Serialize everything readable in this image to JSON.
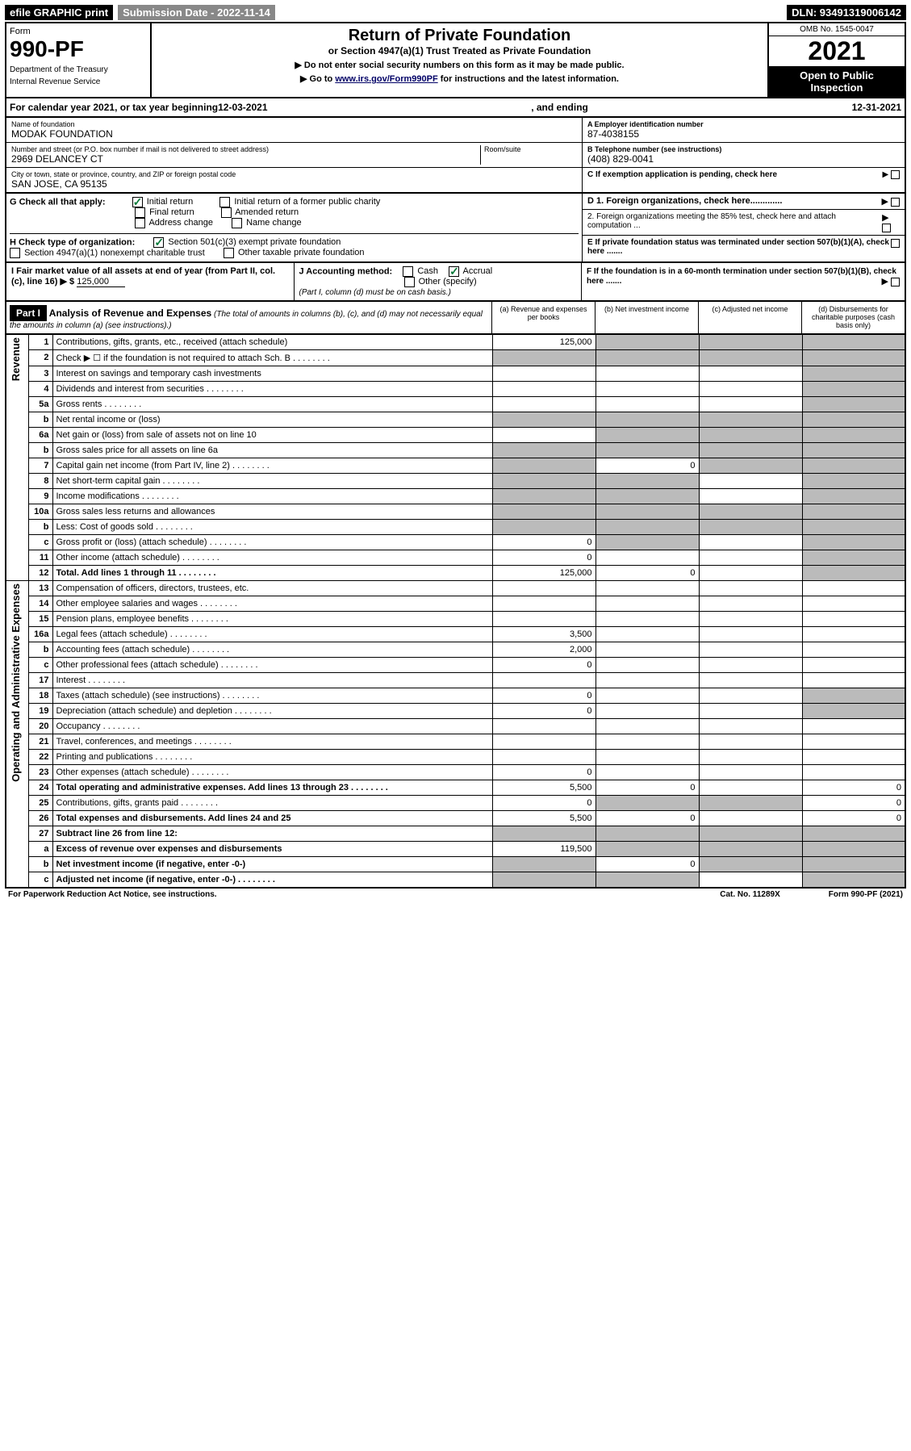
{
  "topbar": {
    "efile": "efile GRAPHIC print",
    "submission": "Submission Date - 2022-11-14",
    "dln": "DLN: 93491319006142"
  },
  "header": {
    "form": "Form",
    "form_no": "990-PF",
    "dept": "Department of the Treasury",
    "irs": "Internal Revenue Service",
    "title": "Return of Private Foundation",
    "subtitle": "or Section 4947(a)(1) Trust Treated as Private Foundation",
    "note1": "▶ Do not enter social security numbers on this form as it may be made public.",
    "note2_pre": "▶ Go to ",
    "note2_link": "www.irs.gov/Form990PF",
    "note2_post": " for instructions and the latest information.",
    "omb": "OMB No. 1545-0047",
    "year": "2021",
    "open": "Open to Public Inspection"
  },
  "calyear": {
    "pre": "For calendar year 2021, or tax year beginning ",
    "begin": "12-03-2021",
    "mid": " , and ending ",
    "end": "12-31-2021"
  },
  "info": {
    "name_lbl": "Name of foundation",
    "name": "MODAK FOUNDATION",
    "addr_lbl": "Number and street (or P.O. box number if mail is not delivered to street address)",
    "addr": "2969 DELANCEY CT",
    "room_lbl": "Room/suite",
    "city_lbl": "City or town, state or province, country, and ZIP or foreign postal code",
    "city": "SAN JOSE, CA  95135",
    "a_lbl": "A Employer identification number",
    "a_val": "87-4038155",
    "b_lbl": "B Telephone number (see instructions)",
    "b_val": "(408) 829-0041",
    "c_lbl": "C If exemption application is pending, check here",
    "d1": "D 1. Foreign organizations, check here.............",
    "d2": "2. Foreign organizations meeting the 85% test, check here and attach computation ...",
    "e": "E  If private foundation status was terminated under section 507(b)(1)(A), check here .......",
    "f": "F  If the foundation is in a 60-month termination under section 507(b)(1)(B), check here ......."
  },
  "g": {
    "lbl": "G Check all that apply:",
    "initial": "Initial return",
    "initial_former": "Initial return of a former public charity",
    "final": "Final return",
    "amended": "Amended return",
    "addr_change": "Address change",
    "name_change": "Name change"
  },
  "h": {
    "lbl": "H Check type of organization:",
    "s501": "Section 501(c)(3) exempt private foundation",
    "s4947": "Section 4947(a)(1) nonexempt charitable trust",
    "other_tax": "Other taxable private foundation"
  },
  "i": {
    "lbl": "I Fair market value of all assets at end of year (from Part II, col. (c), line 16) ▶ $ ",
    "val": "125,000"
  },
  "j": {
    "lbl": "J Accounting method:",
    "cash": "Cash",
    "accrual": "Accrual",
    "other": "Other (specify)",
    "note": "(Part I, column (d) must be on cash basis.)"
  },
  "part1": {
    "hdr": "Part I",
    "title": "Analysis of Revenue and Expenses",
    "note": " (The total of amounts in columns (b), (c), and (d) may not necessarily equal the amounts in column (a) (see instructions).)",
    "col_a": "(a) Revenue and expenses per books",
    "col_b": "(b) Net investment income",
    "col_c": "(c) Adjusted net income",
    "col_d": "(d) Disbursements for charitable purposes (cash basis only)"
  },
  "side": {
    "rev": "Revenue",
    "exp": "Operating and Administrative Expenses"
  },
  "rows": [
    {
      "n": "1",
      "lbl": "Contributions, gifts, grants, etc., received (attach schedule)",
      "a": "125,000",
      "shade_b": true,
      "shade_c": true,
      "shade_d": true
    },
    {
      "n": "2",
      "lbl": "Check ▶ ☐ if the foundation is not required to attach Sch. B",
      "dots": true,
      "shade_a": true,
      "shade_b": true,
      "shade_c": true,
      "shade_d": true
    },
    {
      "n": "3",
      "lbl": "Interest on savings and temporary cash investments",
      "shade_d": true
    },
    {
      "n": "4",
      "lbl": "Dividends and interest from securities",
      "dots": true,
      "shade_d": true
    },
    {
      "n": "5a",
      "lbl": "Gross rents",
      "dots": true,
      "shade_d": true
    },
    {
      "n": "b",
      "lbl": "Net rental income or (loss)",
      "shade_a": true,
      "shade_b": true,
      "shade_c": true,
      "shade_d": true
    },
    {
      "n": "6a",
      "lbl": "Net gain or (loss) from sale of assets not on line 10",
      "shade_b": true,
      "shade_c": true,
      "shade_d": true
    },
    {
      "n": "b",
      "lbl": "Gross sales price for all assets on line 6a",
      "shade_a": true,
      "shade_b": true,
      "shade_c": true,
      "shade_d": true
    },
    {
      "n": "7",
      "lbl": "Capital gain net income (from Part IV, line 2)",
      "dots": true,
      "shade_a": true,
      "b": "0",
      "shade_c": true,
      "shade_d": true
    },
    {
      "n": "8",
      "lbl": "Net short-term capital gain",
      "dots": true,
      "shade_a": true,
      "shade_b": true,
      "shade_d": true
    },
    {
      "n": "9",
      "lbl": "Income modifications",
      "dots": true,
      "shade_a": true,
      "shade_b": true,
      "shade_d": true
    },
    {
      "n": "10a",
      "lbl": "Gross sales less returns and allowances",
      "shade_a": true,
      "shade_b": true,
      "shade_c": true,
      "shade_d": true
    },
    {
      "n": "b",
      "lbl": "Less: Cost of goods sold",
      "dots": true,
      "shade_a": true,
      "shade_b": true,
      "shade_c": true,
      "shade_d": true
    },
    {
      "n": "c",
      "lbl": "Gross profit or (loss) (attach schedule)",
      "dots": true,
      "a": "0",
      "shade_b": true,
      "shade_d": true
    },
    {
      "n": "11",
      "lbl": "Other income (attach schedule)",
      "dots": true,
      "a": "0",
      "shade_d": true
    },
    {
      "n": "12",
      "lbl": "Total. Add lines 1 through 11",
      "dots": true,
      "bold": true,
      "a": "125,000",
      "b": "0",
      "shade_d": true
    },
    {
      "n": "13",
      "lbl": "Compensation of officers, directors, trustees, etc."
    },
    {
      "n": "14",
      "lbl": "Other employee salaries and wages",
      "dots": true
    },
    {
      "n": "15",
      "lbl": "Pension plans, employee benefits",
      "dots": true
    },
    {
      "n": "16a",
      "lbl": "Legal fees (attach schedule)",
      "dots": true,
      "a": "3,500"
    },
    {
      "n": "b",
      "lbl": "Accounting fees (attach schedule)",
      "dots": true,
      "a": "2,000"
    },
    {
      "n": "c",
      "lbl": "Other professional fees (attach schedule)",
      "dots": true,
      "a": "0"
    },
    {
      "n": "17",
      "lbl": "Interest",
      "dots": true
    },
    {
      "n": "18",
      "lbl": "Taxes (attach schedule) (see instructions)",
      "dots": true,
      "a": "0",
      "shade_d": true
    },
    {
      "n": "19",
      "lbl": "Depreciation (attach schedule) and depletion",
      "dots": true,
      "a": "0",
      "shade_d": true
    },
    {
      "n": "20",
      "lbl": "Occupancy",
      "dots": true
    },
    {
      "n": "21",
      "lbl": "Travel, conferences, and meetings",
      "dots": true
    },
    {
      "n": "22",
      "lbl": "Printing and publications",
      "dots": true
    },
    {
      "n": "23",
      "lbl": "Other expenses (attach schedule)",
      "dots": true,
      "a": "0"
    },
    {
      "n": "24",
      "lbl": "Total operating and administrative expenses. Add lines 13 through 23",
      "dots": true,
      "bold": true,
      "a": "5,500",
      "b": "0",
      "d": "0"
    },
    {
      "n": "25",
      "lbl": "Contributions, gifts, grants paid",
      "dots": true,
      "a": "0",
      "shade_b": true,
      "shade_c": true,
      "d": "0"
    },
    {
      "n": "26",
      "lbl": "Total expenses and disbursements. Add lines 24 and 25",
      "bold": true,
      "a": "5,500",
      "b": "0",
      "d": "0"
    },
    {
      "n": "27",
      "lbl": "Subtract line 26 from line 12:",
      "bold": true,
      "shade_a": true,
      "shade_b": true,
      "shade_c": true,
      "shade_d": true
    },
    {
      "n": "a",
      "lbl": "Excess of revenue over expenses and disbursements",
      "bold": true,
      "a": "119,500",
      "shade_b": true,
      "shade_c": true,
      "shade_d": true
    },
    {
      "n": "b",
      "lbl": "Net investment income (if negative, enter -0-)",
      "bold": true,
      "shade_a": true,
      "b": "0",
      "shade_c": true,
      "shade_d": true
    },
    {
      "n": "c",
      "lbl": "Adjusted net income (if negative, enter -0-)",
      "dots": true,
      "bold": true,
      "shade_a": true,
      "shade_b": true,
      "shade_d": true
    }
  ],
  "footer": {
    "left": "For Paperwork Reduction Act Notice, see instructions.",
    "mid": "Cat. No. 11289X",
    "right": "Form 990-PF (2021)"
  }
}
